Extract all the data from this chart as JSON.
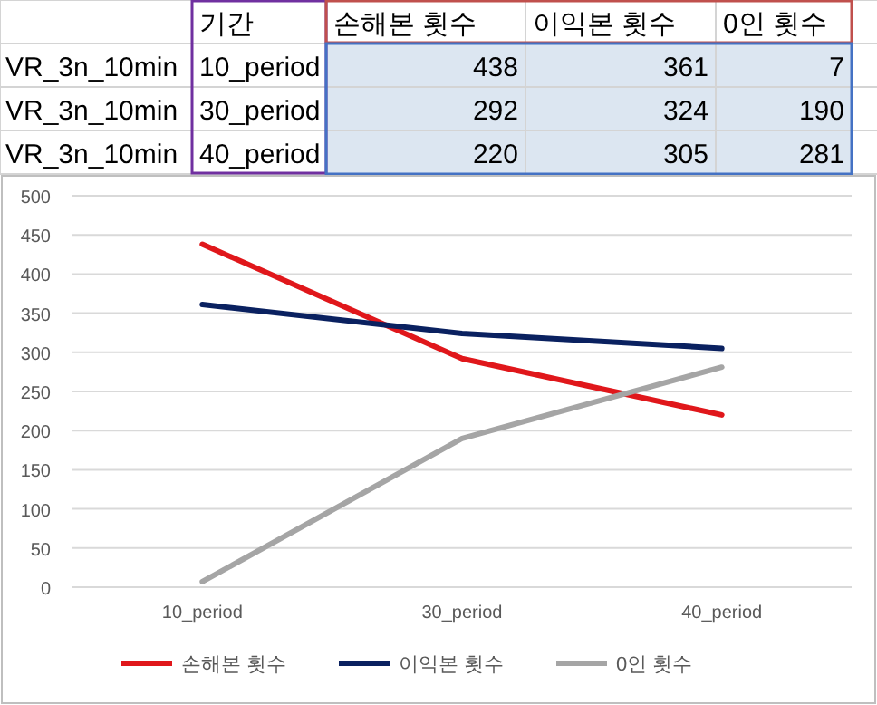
{
  "chart_data": [
    {
      "type": "other",
      "categories": [
        "10_period",
        "30_period",
        "40_period"
      ],
      "series": [
        {
          "name": "손해본 횟수",
          "values": [
            438,
            292,
            220
          ]
        },
        {
          "name": "이익본 횟수",
          "values": [
            361,
            324,
            305
          ]
        },
        {
          "name": "0인 횟수",
          "values": [
            7,
            190,
            281
          ]
        }
      ],
      "annotations": [
        "기간",
        "VR_3n_10min",
        "VR_3n_10min",
        "VR_3n_10min"
      ],
      "data_labels": true
    },
    {
      "type": "line",
      "categories": [
        "10_period",
        "30_period",
        "40_period"
      ],
      "series": [
        {
          "name": "손해본 횟수",
          "color": "#e0171b",
          "values": [
            438,
            292,
            220
          ]
        },
        {
          "name": "이익본 횟수",
          "color": "#0a2160",
          "values": [
            361,
            324,
            305
          ]
        },
        {
          "name": "0인 횟수",
          "color": "#a5a5a5",
          "values": [
            7,
            190,
            281
          ]
        }
      ],
      "ylim": [
        0,
        500
      ],
      "yticks": [
        0,
        50,
        100,
        150,
        200,
        250,
        300,
        350,
        400,
        450,
        500
      ],
      "grid": "y",
      "legend": "bottom",
      "marker": "none",
      "line_style": "solid"
    }
  ]
}
